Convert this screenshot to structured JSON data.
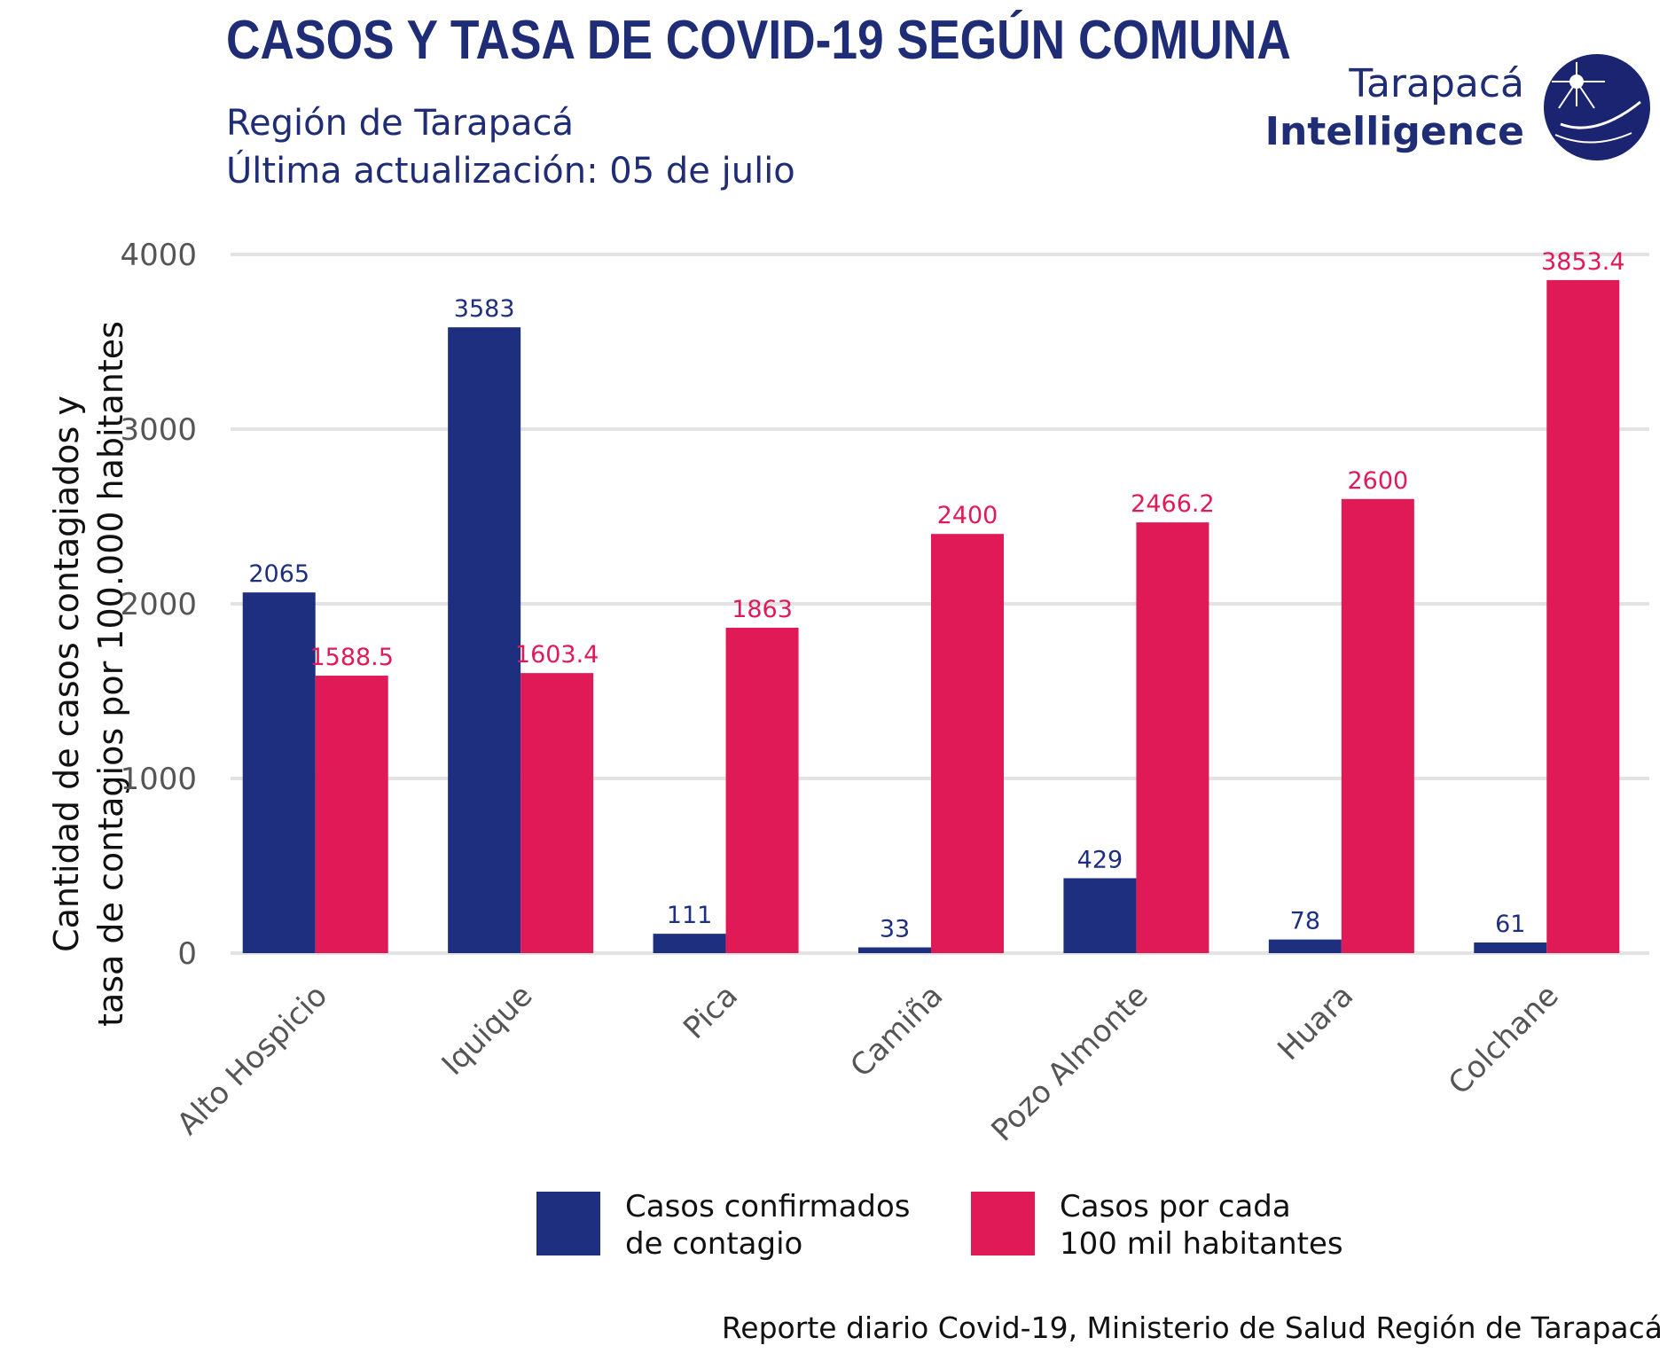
{
  "header": {
    "title": "CASOS Y TASA DE COVID-19 SEGÚN COMUNA",
    "subtitle_line1": "Región de Tarapacá",
    "subtitle_line2": "Última actualización: 05 de julio"
  },
  "logo": {
    "line1": "Tarapacá",
    "line2": "Intelligence",
    "icon": "globe-logo-icon"
  },
  "caption": "Reporte diario Covid-19, Ministerio de Salud Región de Tarapacá",
  "colors": {
    "navy": "#1f2f80",
    "crimson": "#e01a57",
    "grid": "#e3e3e3"
  },
  "chart_data": {
    "type": "bar",
    "title": "CASOS Y TASA DE COVID-19 SEGÚN COMUNA",
    "ylabel_line1": "Cantidad de casos contagiados y",
    "ylabel_line2": "tasa de contagios por 100.000 habitantes",
    "xlabel": "",
    "ylim": [
      0,
      4000
    ],
    "yticks": [
      0,
      1000,
      2000,
      3000,
      4000
    ],
    "grid": true,
    "legend_position": "bottom",
    "categories": [
      "Alto Hospicio",
      "Iquique",
      "Pica",
      "Camiña",
      "Pozo Almonte",
      "Huara",
      "Colchane"
    ],
    "series": [
      {
        "name_line1": "Casos confirmados",
        "name_line2": "de contagio",
        "color": "#1f2f80",
        "values": [
          2065,
          3583,
          111,
          33,
          429,
          78,
          61
        ],
        "labels": [
          "2065",
          "3583",
          "111",
          "33",
          "429",
          "78",
          "61"
        ]
      },
      {
        "name_line1": "Casos por cada",
        "name_line2": "100 mil habitantes",
        "color": "#e01a57",
        "values": [
          1588.5,
          1603.4,
          1863,
          2400,
          2466.2,
          2600,
          3853.4
        ],
        "labels": [
          "1588.5",
          "1603.4",
          "1863",
          "2400",
          "2466.2",
          "2600",
          "3853.4"
        ]
      }
    ]
  }
}
